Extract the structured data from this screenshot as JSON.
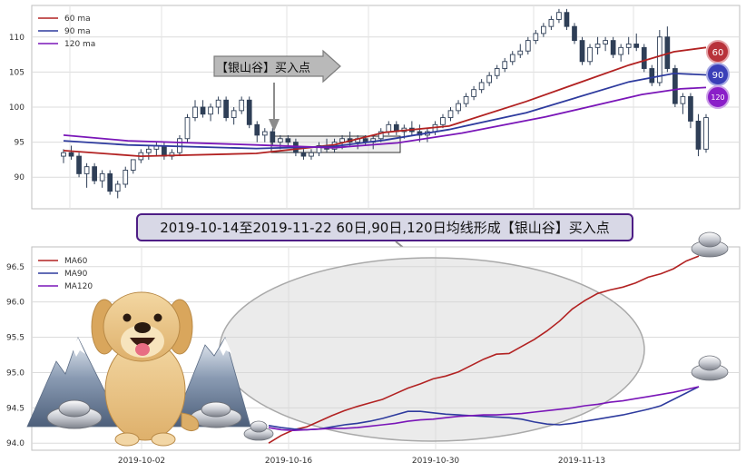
{
  "top_panel": {
    "legend": [
      {
        "label": "60 ma",
        "color": "#b22222"
      },
      {
        "label": "90 ma",
        "color": "#2e3b9e"
      },
      {
        "label": "120 ma",
        "color": "#7a16b8"
      }
    ],
    "badges": [
      {
        "label": "60",
        "color": "#b8323a"
      },
      {
        "label": "90",
        "color": "#3a3fb8"
      },
      {
        "label": "120",
        "color": "#8a1ec8"
      }
    ],
    "callout_label": "【银山谷】买入点"
  },
  "banner": "2019-10-14至2019-11-22 60日,90日,120日均线形成【银山谷】买入点",
  "bottom_panel": {
    "legend": [
      {
        "label": "MA60",
        "color": "#b22222"
      },
      {
        "label": "MA90",
        "color": "#2e3b9e"
      },
      {
        "label": "MA120",
        "color": "#7a16b8"
      }
    ]
  },
  "chart_data": [
    {
      "type": "candlestick",
      "yticks": [
        90,
        95,
        100,
        105,
        110
      ],
      "ylim": [
        85.5,
        114.5
      ],
      "grid": true,
      "legend_position": "top-left",
      "ohlc_approx": [
        [
          93,
          94,
          92,
          93.5
        ],
        [
          93.5,
          94.5,
          92.5,
          93
        ],
        [
          93,
          93.5,
          90,
          90.5
        ],
        [
          90.5,
          92,
          88.5,
          91.5
        ],
        [
          91.5,
          92,
          89,
          89.5
        ],
        [
          89.5,
          91,
          88.5,
          90.5
        ],
        [
          90.5,
          91,
          87.5,
          88
        ],
        [
          88,
          89.5,
          87,
          89
        ],
        [
          89,
          91.5,
          88.5,
          91
        ],
        [
          91,
          92.5,
          90.5,
          92.5
        ],
        [
          92.5,
          94,
          92,
          93.5
        ],
        [
          93.5,
          94.5,
          92.5,
          94
        ],
        [
          94,
          95,
          93,
          94.5
        ],
        [
          94.5,
          95,
          92.5,
          93
        ],
        [
          93,
          94,
          92.5,
          93.5
        ],
        [
          93.5,
          96,
          93,
          95.5
        ],
        [
          95.5,
          99,
          95,
          98.5
        ],
        [
          98.5,
          101,
          98,
          100
        ],
        [
          100,
          101,
          98.5,
          99
        ],
        [
          99,
          100.5,
          98,
          100
        ],
        [
          100,
          101.5,
          99,
          101
        ],
        [
          101,
          101.5,
          98,
          98.5
        ],
        [
          98.5,
          100,
          97.5,
          99.5
        ],
        [
          99.5,
          101.5,
          99,
          101
        ],
        [
          101,
          101.5,
          97,
          97.5
        ],
        [
          97.5,
          98,
          95,
          96
        ],
        [
          96,
          97,
          95,
          96.5
        ],
        [
          96.5,
          97,
          94.5,
          95
        ],
        [
          95,
          96,
          94,
          95.5
        ],
        [
          95.5,
          96,
          94.5,
          95
        ],
        [
          95,
          95.5,
          93,
          93.5
        ],
        [
          93.5,
          94,
          92.5,
          93
        ],
        [
          93,
          94,
          92.5,
          93.5
        ],
        [
          93.5,
          95,
          93,
          94.5
        ],
        [
          94.5,
          95.5,
          93.5,
          94
        ],
        [
          94,
          95.5,
          93.5,
          95
        ],
        [
          95,
          96,
          94,
          95.5
        ],
        [
          95.5,
          96.5,
          94.5,
          95
        ],
        [
          95,
          96,
          94,
          95.5
        ],
        [
          95.5,
          96,
          94.5,
          95
        ],
        [
          95,
          96,
          94,
          95.5
        ],
        [
          95.5,
          97,
          95,
          96.5
        ],
        [
          96.5,
          98,
          96,
          97.5
        ],
        [
          97.5,
          98,
          96,
          96.5
        ],
        [
          96.5,
          97.5,
          95.5,
          97
        ],
        [
          97,
          98,
          96,
          96.5
        ],
        [
          96.5,
          97.5,
          95,
          96
        ],
        [
          96,
          97,
          95,
          96.5
        ],
        [
          96.5,
          98,
          96,
          97.5
        ],
        [
          97.5,
          99,
          97,
          98.5
        ],
        [
          98.5,
          100,
          98,
          99.5
        ],
        [
          99.5,
          101,
          99,
          100.5
        ],
        [
          100.5,
          102,
          100,
          101.5
        ],
        [
          101.5,
          103,
          101,
          102.5
        ],
        [
          102.5,
          104,
          102,
          103.5
        ],
        [
          103.5,
          105,
          103,
          104.5
        ],
        [
          104.5,
          106,
          104,
          105.5
        ],
        [
          105.5,
          107,
          105,
          106.5
        ],
        [
          106.5,
          108,
          106,
          107.5
        ],
        [
          107.5,
          109,
          107,
          108
        ],
        [
          108,
          110,
          107.5,
          109.5
        ],
        [
          109.5,
          111,
          109,
          110.5
        ],
        [
          110.5,
          112,
          110,
          111.5
        ],
        [
          111.5,
          113,
          111,
          112.5
        ],
        [
          112.5,
          114,
          112,
          113.5
        ],
        [
          113.5,
          114,
          111,
          111.5
        ],
        [
          111.5,
          112,
          109,
          109.5
        ],
        [
          109.5,
          110,
          106,
          106.5
        ],
        [
          106.5,
          109,
          106,
          108.5
        ],
        [
          108.5,
          110,
          107.5,
          109
        ],
        [
          109,
          110,
          108,
          109.5
        ],
        [
          109.5,
          110,
          107,
          107.5
        ],
        [
          107.5,
          109,
          106.5,
          108.5
        ],
        [
          108.5,
          110,
          107.5,
          109
        ],
        [
          109,
          110.5,
          108,
          108.5
        ],
        [
          108.5,
          109,
          105,
          105.5
        ],
        [
          105.5,
          106,
          103,
          103.5
        ],
        [
          103.5,
          111,
          103,
          110
        ],
        [
          110,
          111.5,
          105,
          105.5
        ],
        [
          105.5,
          106,
          100,
          100.5
        ],
        [
          100.5,
          102,
          99,
          101.5
        ],
        [
          101.5,
          102,
          97,
          98
        ],
        [
          98,
          99,
          93,
          94
        ],
        [
          94,
          99,
          93.5,
          98.5
        ]
      ]
    },
    {
      "type": "line",
      "x_tick_labels": [
        "2019-10-02",
        "2019-10-16",
        "2019-10-30",
        "2019-11-13"
      ],
      "yticks": [
        94.0,
        94.5,
        95.0,
        95.5,
        96.0,
        96.5
      ],
      "ylim": [
        93.9,
        96.78
      ],
      "grid": true,
      "legend_position": "top-left",
      "series": [
        {
          "name": "MA60",
          "color": "#b22222",
          "values": [
            94.0,
            94.11,
            94.19,
            94.23,
            94.31,
            94.39,
            94.46,
            94.52,
            94.57,
            94.62,
            94.7,
            94.78,
            94.84,
            94.91,
            94.95,
            95.01,
            95.1,
            95.19,
            95.26,
            95.27,
            95.37,
            95.47,
            95.59,
            95.73,
            95.9,
            96.02,
            96.12,
            96.17,
            96.21,
            96.27,
            96.35,
            96.4,
            96.47,
            96.58,
            96.65
          ]
        },
        {
          "name": "MA90",
          "color": "#2e3b9e",
          "values": [
            94.25,
            94.22,
            94.2,
            94.19,
            94.2,
            94.23,
            94.26,
            94.28,
            94.31,
            94.35,
            94.4,
            94.45,
            94.45,
            94.43,
            94.41,
            94.4,
            94.39,
            94.38,
            94.37,
            94.36,
            94.34,
            94.3,
            94.27,
            94.26,
            94.28,
            94.31,
            94.34,
            94.37,
            94.4,
            94.44,
            94.48,
            94.53,
            94.62,
            94.71,
            94.8
          ]
        },
        {
          "name": "MA120",
          "color": "#7a16b8",
          "values": [
            94.22,
            94.19,
            94.18,
            94.19,
            94.2,
            94.21,
            94.21,
            94.22,
            94.24,
            94.26,
            94.28,
            94.31,
            94.33,
            94.34,
            94.36,
            94.38,
            94.39,
            94.4,
            94.4,
            94.41,
            94.42,
            94.44,
            94.46,
            94.48,
            94.5,
            94.53,
            94.55,
            94.58,
            94.6,
            94.63,
            94.66,
            94.69,
            94.72,
            94.76,
            94.8
          ]
        }
      ]
    }
  ]
}
